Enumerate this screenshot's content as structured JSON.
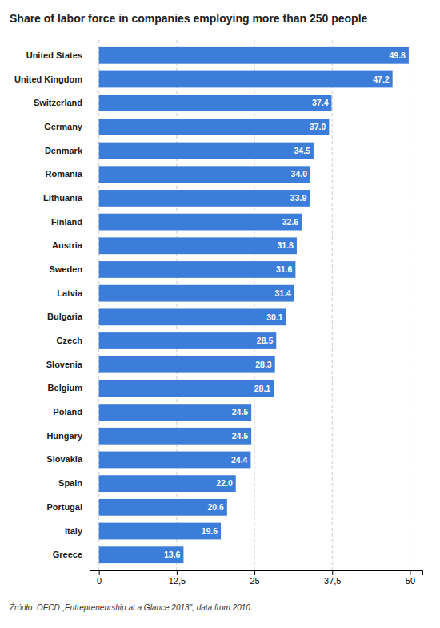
{
  "chart_data": {
    "type": "bar",
    "orientation": "horizontal",
    "title": "Share of labor force in companies employing more than 250 people",
    "annotations": [
      "Źródło: OECD „Entrepreneurship at a Glance 2013\", data from 2010."
    ],
    "categories": [
      "United States",
      "United Kingdom",
      "Switzerland",
      "Germany",
      "Denmark",
      "Romania",
      "Lithuania",
      "Finland",
      "Austria",
      "Sweden",
      "Latvia",
      "Bulgaria",
      "Czech",
      "Slovenia",
      "Belgium",
      "Poland",
      "Hungary",
      "Slovakia",
      "Spain",
      "Portugal",
      "Italy",
      "Greece"
    ],
    "values": [
      49.8,
      47.2,
      37.4,
      37.0,
      34.5,
      34.0,
      33.9,
      32.6,
      31.8,
      31.6,
      31.4,
      30.1,
      28.5,
      28.3,
      28.1,
      24.5,
      24.5,
      24.4,
      22.0,
      20.6,
      19.6,
      13.6
    ],
    "value_labels": [
      "49.8",
      "47.2",
      "37.4",
      "37.0",
      "34.5",
      "34.0",
      "33.9",
      "32.6",
      "31.8",
      "31.6",
      "31.4",
      "30.1",
      "28.5",
      "28.3",
      "28.1",
      "24.5",
      "24.5",
      "24.4",
      "22.0",
      "20.6",
      "19.6",
      "13.6"
    ],
    "data_labels": true,
    "color": "#3b7dd8",
    "xlim": [
      -1.5,
      52
    ],
    "xticks": [
      0,
      {
        "value": 12.5,
        "label": "12,5"
      },
      25,
      {
        "value": 37.5,
        "label": "37,5"
      },
      50
    ],
    "grid": true
  }
}
